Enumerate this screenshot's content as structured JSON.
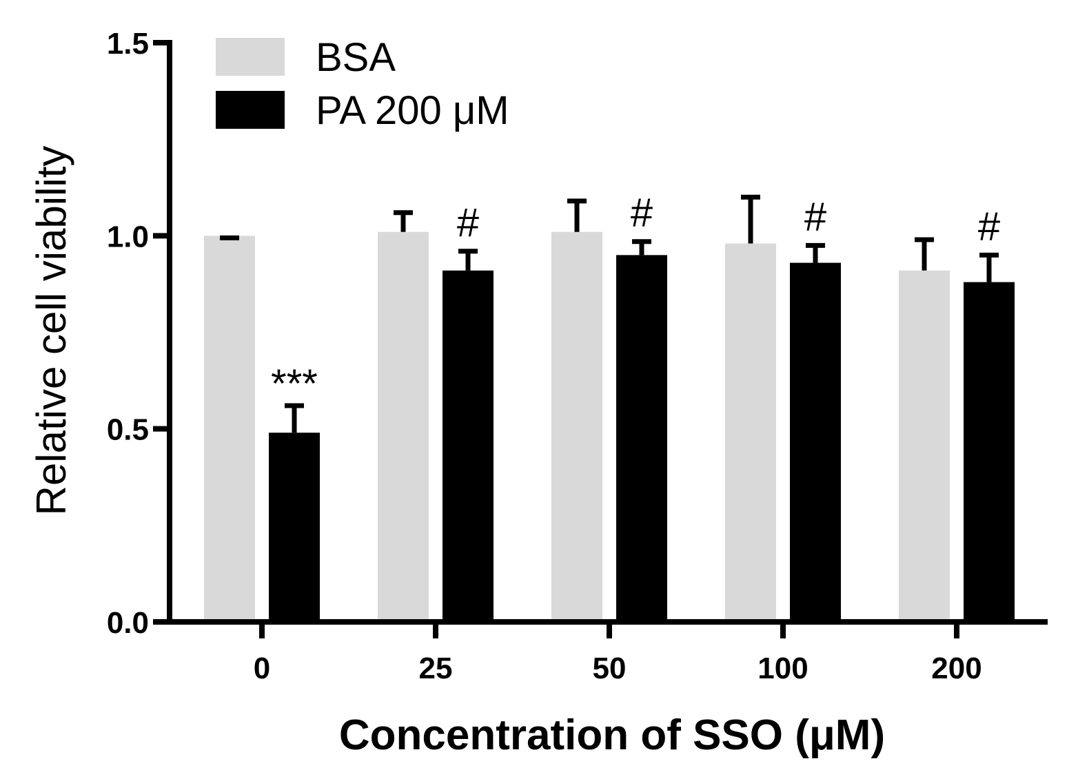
{
  "chart_data": {
    "type": "bar",
    "title": "",
    "xlabel": "Concentration of SSO (μM)",
    "ylabel": "Relative cell viability",
    "ylim": [
      0,
      1.5
    ],
    "yticks": [
      "0.0",
      "0.5",
      "1.0",
      "1.5"
    ],
    "grid": false,
    "legend_position": "top-left",
    "categories": [
      "0",
      "25",
      "50",
      "100",
      "200"
    ],
    "series": [
      {
        "name": "BSA",
        "color": "#d9d9d9",
        "values": [
          1.0,
          1.01,
          1.01,
          0.98,
          0.91
        ],
        "errors": [
          0.0,
          0.05,
          0.08,
          0.12,
          0.08
        ],
        "annotations": [
          "",
          "",
          "",
          "",
          ""
        ]
      },
      {
        "name": "PA 200 μM",
        "color": "#000000",
        "values": [
          0.49,
          0.91,
          0.95,
          0.93,
          0.88
        ],
        "errors": [
          0.07,
          0.05,
          0.035,
          0.045,
          0.07
        ],
        "annotations": [
          "***",
          "#",
          "#",
          "#",
          "#"
        ]
      }
    ]
  }
}
